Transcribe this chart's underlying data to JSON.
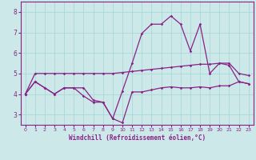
{
  "title": "",
  "xlabel": "Windchill (Refroidissement éolien,°C)",
  "ylabel": "",
  "xlim": [
    -0.5,
    23.5
  ],
  "ylim": [
    2.5,
    8.5
  ],
  "yticks": [
    3,
    4,
    5,
    6,
    7,
    8
  ],
  "xticks": [
    0,
    1,
    2,
    3,
    4,
    5,
    6,
    7,
    8,
    9,
    10,
    11,
    12,
    13,
    14,
    15,
    16,
    17,
    18,
    19,
    20,
    21,
    22,
    23
  ],
  "bg_color": "#cce8e8",
  "line_color": "#882288",
  "grid_color": "#aad8d8",
  "line1_x": [
    0,
    1,
    2,
    3,
    4,
    5,
    6,
    7,
    8,
    9,
    10,
    11,
    12,
    13,
    14,
    15,
    16,
    17,
    18,
    19,
    20,
    21,
    22,
    23
  ],
  "line1_y": [
    4.0,
    4.6,
    4.3,
    4.0,
    4.3,
    4.3,
    4.3,
    3.7,
    3.6,
    2.8,
    2.6,
    4.1,
    4.1,
    4.2,
    4.3,
    4.35,
    4.3,
    4.3,
    4.35,
    4.3,
    4.4,
    4.4,
    4.6,
    4.5
  ],
  "line2_x": [
    0,
    1,
    2,
    3,
    4,
    5,
    6,
    7,
    8,
    9,
    10,
    11,
    12,
    13,
    14,
    15,
    16,
    17,
    18,
    19,
    20,
    21,
    22,
    23
  ],
  "line2_y": [
    4.0,
    5.0,
    5.0,
    5.0,
    5.0,
    5.0,
    5.0,
    5.0,
    5.0,
    5.0,
    5.05,
    5.1,
    5.15,
    5.2,
    5.25,
    5.3,
    5.35,
    5.4,
    5.45,
    5.45,
    5.5,
    5.5,
    5.0,
    4.9
  ],
  "line3_x": [
    0,
    1,
    2,
    3,
    4,
    5,
    6,
    7,
    8,
    9,
    10,
    11,
    12,
    13,
    14,
    15,
    16,
    17,
    18,
    19,
    20,
    21,
    22,
    23
  ],
  "line3_y": [
    4.0,
    4.6,
    4.3,
    4.0,
    4.3,
    4.3,
    3.9,
    3.6,
    3.6,
    2.8,
    4.15,
    5.5,
    6.95,
    7.4,
    7.4,
    7.8,
    7.4,
    6.1,
    7.4,
    5.0,
    5.5,
    5.4,
    4.6,
    4.5
  ],
  "marker": "D",
  "markersize": 1.8,
  "linewidth": 0.9
}
